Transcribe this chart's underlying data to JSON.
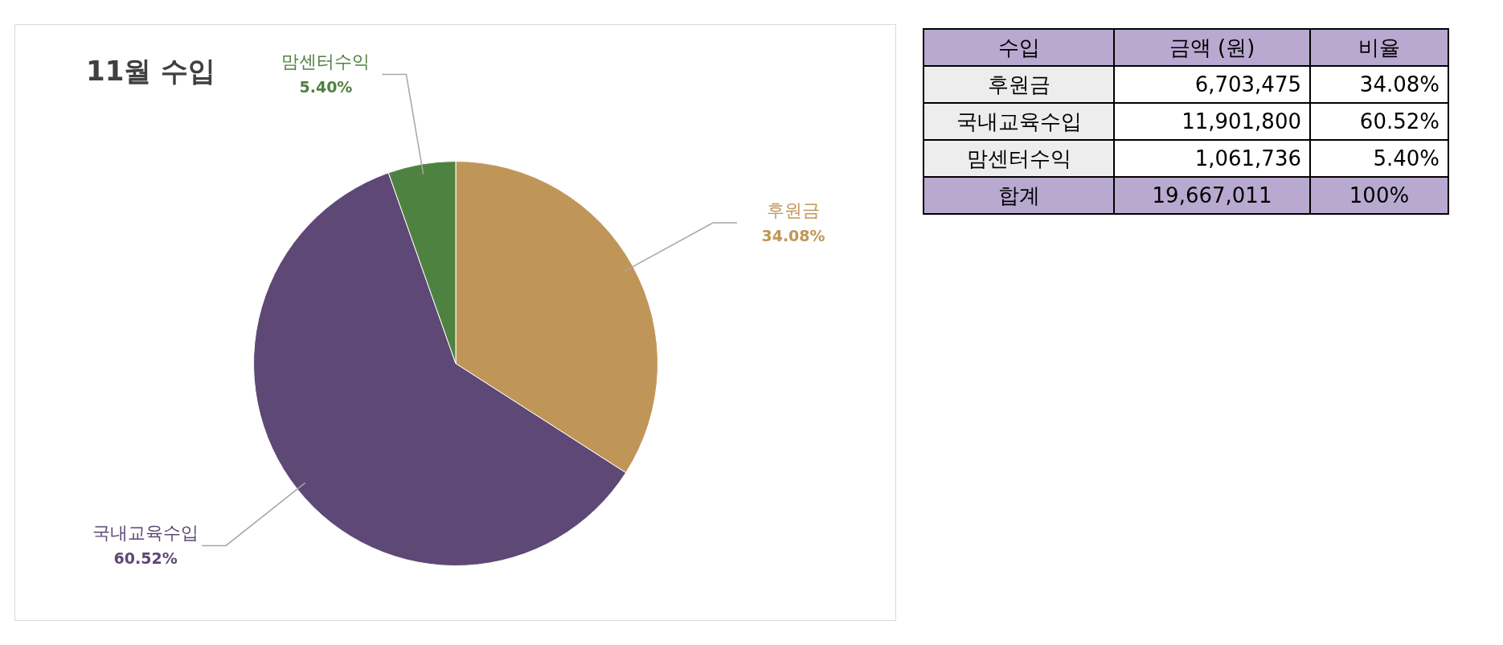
{
  "chart_data": [
    {
      "type": "pie",
      "title": "11월 수입",
      "categories": [
        "후원금",
        "국내교육수입",
        "맘센터수익"
      ],
      "values": [
        34.08,
        60.52,
        5.4
      ],
      "colors": [
        "#c09658",
        "#5e4876",
        "#4e8240"
      ],
      "value_labels": [
        "34.08%",
        "60.52%",
        "5.40%"
      ],
      "legend": false
    },
    {
      "type": "other",
      "annotations": [
        "수입",
        "금액 (원)",
        "비율",
        "후원금",
        "6,703,475",
        "34.08%",
        "국내교육수입",
        "11,901,800",
        "60.52%",
        "맘센터수익",
        "1,061,736",
        "5.40%",
        "합계",
        "19,667,011",
        "100%"
      ]
    }
  ]
}
